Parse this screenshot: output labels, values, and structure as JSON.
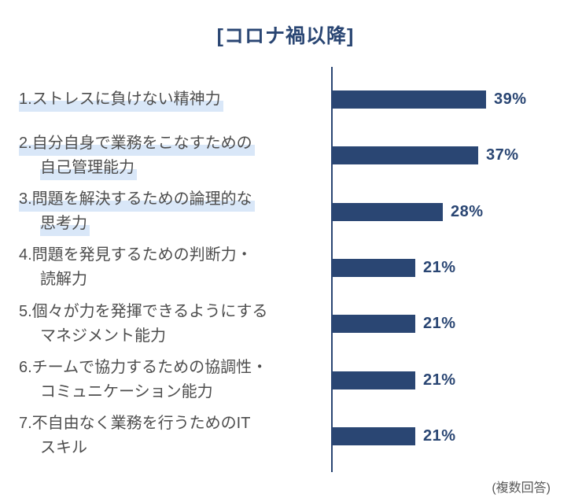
{
  "page": {
    "title": "[コロナ禍以降]",
    "footer_note": "(複数回答)"
  },
  "colors": {
    "navy": "#2a4673",
    "highlight": "#d9e7f8",
    "label_text": "#4d4d4d",
    "note_text": "#595959"
  },
  "chart_data": {
    "type": "bar",
    "orientation": "horizontal",
    "title": "[コロナ禍以降]",
    "unit": "%",
    "note": "(複数回答)",
    "xlim": [
      0,
      40
    ],
    "grid": false,
    "legend": false,
    "bar_color": "#2a4673",
    "categories": [
      "1.ストレスに負けない精神力",
      "2.自分自身で業務をこなすための自己管理能力",
      "3.問題を解決するための論理的な思考力",
      "4.問題を発見するための判断力・読解力",
      "5.個々が力を発揮できるようにするマネジメント能力",
      "6.チームで協力するための協調性・コミュニケーション能力",
      "7.不自由なく業務を行うためのITスキル"
    ],
    "values": [
      39,
      37,
      28,
      21,
      21,
      21,
      21
    ],
    "items": [
      {
        "rank": 1,
        "label_lines": [
          "1.ストレスに負けない精神力"
        ],
        "value": 39,
        "value_label": "39%",
        "label_highlighted": true
      },
      {
        "rank": 2,
        "label_lines": [
          "2.自分自身で業務をこなすための",
          "自己管理能力"
        ],
        "value": 37,
        "value_label": "37%",
        "label_highlighted": true
      },
      {
        "rank": 3,
        "label_lines": [
          "3.問題を解決するための論理的な",
          "思考力"
        ],
        "value": 28,
        "value_label": "28%",
        "label_highlighted": true
      },
      {
        "rank": 4,
        "label_lines": [
          "4.問題を発見するための判断力・",
          "読解力"
        ],
        "value": 21,
        "value_label": "21%",
        "label_highlighted": false
      },
      {
        "rank": 5,
        "label_lines": [
          "5.個々が力を発揮できるようにする",
          "マネジメント能力"
        ],
        "value": 21,
        "value_label": "21%",
        "label_highlighted": false
      },
      {
        "rank": 6,
        "label_lines": [
          "6.チームで協力するための協調性・",
          "コミュニケーション能力"
        ],
        "value": 21,
        "value_label": "21%",
        "label_highlighted": false
      },
      {
        "rank": 7,
        "label_lines": [
          "7.不自由なく業務を行うためのIT",
          "スキル"
        ],
        "value": 21,
        "value_label": "21%",
        "label_highlighted": false
      }
    ]
  }
}
